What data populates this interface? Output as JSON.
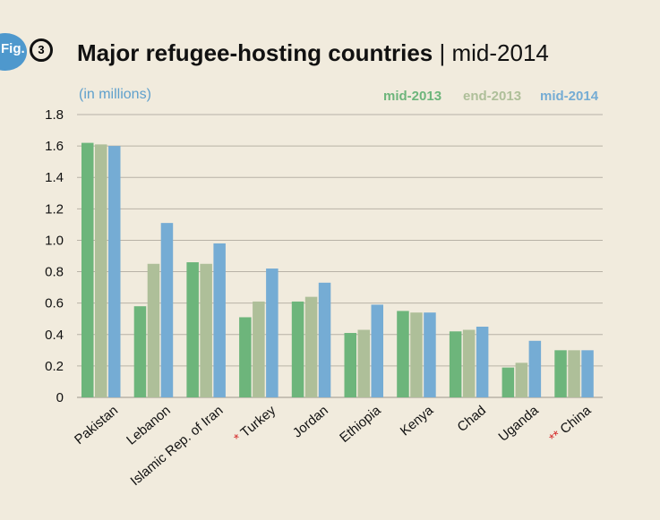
{
  "figure": {
    "badge": "Fig.",
    "number": "3"
  },
  "title": {
    "main": "Major refugee-hosting countries",
    "separator": " | ",
    "sub": "mid-2014"
  },
  "unit_label": "(in millions)",
  "colors": {
    "mid-2013": "#6db57b",
    "end-2013": "#aebf99",
    "mid-2014": "#75acd4",
    "asterisk": "#d42a2a"
  },
  "chart_data": {
    "type": "bar",
    "categories": [
      "Pakistan",
      "Lebanon",
      "Islamic Rep. of Iran",
      "Turkey",
      "Jordan",
      "Ethiopia",
      "Kenya",
      "Chad",
      "Uganda",
      "China"
    ],
    "category_marks": [
      "",
      "",
      "",
      "*",
      "",
      "",
      "",
      "",
      "",
      "**"
    ],
    "series": [
      {
        "name": "mid-2013",
        "values": [
          1.62,
          0.58,
          0.86,
          0.51,
          0.61,
          0.41,
          0.55,
          0.42,
          0.19,
          0.3
        ]
      },
      {
        "name": "end-2013",
        "values": [
          1.61,
          0.85,
          0.85,
          0.61,
          0.64,
          0.43,
          0.54,
          0.43,
          0.22,
          0.3
        ]
      },
      {
        "name": "mid-2014",
        "values": [
          1.6,
          1.11,
          0.98,
          0.82,
          0.73,
          0.59,
          0.54,
          0.45,
          0.36,
          0.3
        ]
      }
    ],
    "ylim": [
      0,
      1.8
    ],
    "yticks": [
      "0",
      "0.2",
      "0.4",
      "0.6",
      "0.8",
      "1.0",
      "1.2",
      "1.4",
      "1.6",
      "1.8"
    ],
    "ytick_values": [
      0,
      0.2,
      0.4,
      0.6,
      0.8,
      1.0,
      1.2,
      1.4,
      1.6,
      1.8
    ],
    "grid": true,
    "legend_position": "top-right"
  }
}
